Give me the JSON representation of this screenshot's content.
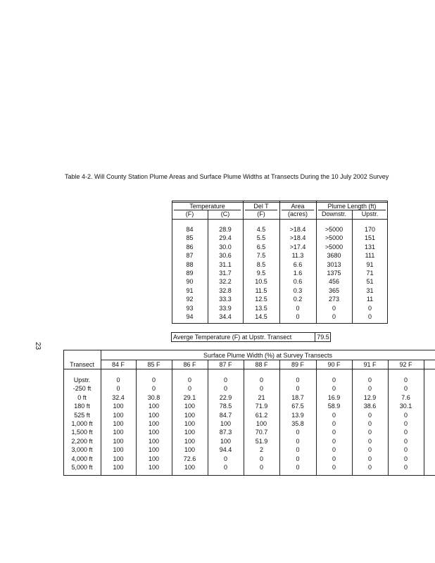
{
  "header": {
    "title": "Table 4-2. Will County Station Plume Areas and Surface Plume Widths at Transects During the 10 July 2002 Survey"
  },
  "page_number": "23",
  "plume_table": {
    "group_headers": [
      "Temperature",
      "Del T",
      "Area",
      "Plume Length (ft)"
    ],
    "unit_headers": [
      "(F)",
      "(C)",
      "(F)",
      "(acres)",
      "Downstr.",
      "Upstr."
    ],
    "rows": [
      [
        "84",
        "28.9",
        "4.5",
        ">18.4",
        ">5000",
        "170"
      ],
      [
        "85",
        "29.4",
        "5.5",
        ">18.4",
        ">5000",
        "151"
      ],
      [
        "86",
        "30.0",
        "6.5",
        ">17.4",
        ">5000",
        "131"
      ],
      [
        "87",
        "30.6",
        "7.5",
        "11.3",
        "3680",
        "111"
      ],
      [
        "88",
        "31.1",
        "8.5",
        "6.6",
        "3013",
        "91"
      ],
      [
        "89",
        "31.7",
        "9.5",
        "1.6",
        "1375",
        "71"
      ],
      [
        "90",
        "32.2",
        "10.5",
        "0.6",
        "456",
        "51"
      ],
      [
        "91",
        "32.8",
        "11.5",
        "0.3",
        "365",
        "31"
      ],
      [
        "92",
        "33.3",
        "12.5",
        "0.2",
        "273",
        "11"
      ],
      [
        "93",
        "33.9",
        "13.5",
        "0",
        "0",
        "0"
      ],
      [
        "94",
        "34.4",
        "14.5",
        "0",
        "0",
        "0"
      ]
    ]
  },
  "average": {
    "label": "Averge Temperature (F) at Upstr. Transect",
    "value": "79.5"
  },
  "width_table": {
    "title": "Surface Plume Width (%) at Survey Transects",
    "columns": [
      "Transect",
      "84 F",
      "85 F",
      "86 F",
      "87 F",
      "88 F",
      "89 F",
      "90 F",
      "91 F",
      "92 F"
    ],
    "rows": [
      [
        "Upstr.",
        "0",
        "0",
        "0",
        "0",
        "0",
        "0",
        "0",
        "0",
        "0"
      ],
      [
        "-250 ft",
        "0",
        "0",
        "0",
        "0",
        "0",
        "0",
        "0",
        "0",
        "0"
      ],
      [
        "0 ft",
        "32.4",
        "30.8",
        "29.1",
        "22.9",
        "21",
        "18.7",
        "16.9",
        "12.9",
        "7.6"
      ],
      [
        "180 ft",
        "100",
        "100",
        "100",
        "78.5",
        "71.9",
        "67.5",
        "58.9",
        "38.6",
        "30.1"
      ],
      [
        "525 ft",
        "100",
        "100",
        "100",
        "84.7",
        "61.2",
        "13.9",
        "0",
        "0",
        "0"
      ],
      [
        "1,000 ft",
        "100",
        "100",
        "100",
        "100",
        "100",
        "35.8",
        "0",
        "0",
        "0"
      ],
      [
        "1,500 ft",
        "100",
        "100",
        "100",
        "87.3",
        "70.7",
        "0",
        "0",
        "0",
        "0"
      ],
      [
        "2,200 ft",
        "100",
        "100",
        "100",
        "100",
        "51.9",
        "0",
        "0",
        "0",
        "0"
      ],
      [
        "3,000 ft",
        "100",
        "100",
        "100",
        "94.4",
        "2",
        "0",
        "0",
        "0",
        "0"
      ],
      [
        "4,000 ft",
        "100",
        "100",
        "72.6",
        "0",
        "0",
        "0",
        "0",
        "0",
        "0"
      ],
      [
        "5,000 ft",
        "100",
        "100",
        "100",
        "0",
        "0",
        "0",
        "0",
        "0",
        "0"
      ]
    ]
  }
}
